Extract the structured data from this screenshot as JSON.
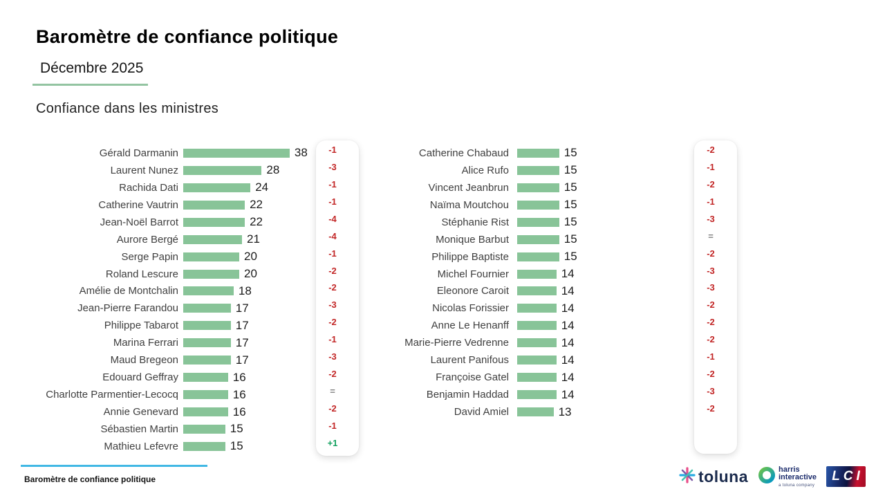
{
  "header": {
    "title": "Baromètre de confiance politique",
    "subtitle": "Décembre 2025",
    "section_title": "Confiance dans les ministres"
  },
  "chart_data": {
    "type": "bar",
    "title": "Confiance dans les ministres",
    "orientation": "horizontal",
    "xlim": [
      0,
      40
    ],
    "bar_color": "#88C498",
    "evolution_colors": {
      "negative": "#C22626",
      "positive": "#12A15F",
      "equal": "#7F7F7F"
    },
    "groups": [
      {
        "entries": [
          {
            "name": "Gérald Darmanin",
            "value": 38,
            "evolution": "-1"
          },
          {
            "name": "Laurent Nunez",
            "value": 28,
            "evolution": "-3"
          },
          {
            "name": "Rachida Dati",
            "value": 24,
            "evolution": "-1"
          },
          {
            "name": "Catherine Vautrin",
            "value": 22,
            "evolution": "-1"
          },
          {
            "name": "Jean-Noël Barrot",
            "value": 22,
            "evolution": "-4"
          },
          {
            "name": "Aurore Bergé",
            "value": 21,
            "evolution": "-4"
          },
          {
            "name": "Serge Papin",
            "value": 20,
            "evolution": "-1"
          },
          {
            "name": "Roland Lescure",
            "value": 20,
            "evolution": "-2"
          },
          {
            "name": "Amélie de Montchalin",
            "value": 18,
            "evolution": "-2"
          },
          {
            "name": "Jean-Pierre Farandou",
            "value": 17,
            "evolution": "-3"
          },
          {
            "name": "Philippe Tabarot",
            "value": 17,
            "evolution": "-2"
          },
          {
            "name": "Marina Ferrari",
            "value": 17,
            "evolution": "-1"
          },
          {
            "name": "Maud Bregeon",
            "value": 17,
            "evolution": "-3"
          },
          {
            "name": "Edouard Geffray",
            "value": 16,
            "evolution": "-2"
          },
          {
            "name": "Charlotte Parmentier-Lecocq",
            "value": 16,
            "evolution": "="
          },
          {
            "name": "Annie Genevard",
            "value": 16,
            "evolution": "-2"
          },
          {
            "name": "Sébastien Martin",
            "value": 15,
            "evolution": "-1"
          },
          {
            "name": "Mathieu Lefevre",
            "value": 15,
            "evolution": "+1"
          }
        ]
      },
      {
        "entries": [
          {
            "name": "Catherine Chabaud",
            "value": 15,
            "evolution": "-2"
          },
          {
            "name": "Alice Rufo",
            "value": 15,
            "evolution": "-1"
          },
          {
            "name": "Vincent Jeanbrun",
            "value": 15,
            "evolution": "-2"
          },
          {
            "name": "Naïma Moutchou",
            "value": 15,
            "evolution": "-1"
          },
          {
            "name": "Stéphanie Rist",
            "value": 15,
            "evolution": "-3"
          },
          {
            "name": "Monique Barbut",
            "value": 15,
            "evolution": "="
          },
          {
            "name": "Philippe Baptiste",
            "value": 15,
            "evolution": "-2"
          },
          {
            "name": "Michel Fournier",
            "value": 14,
            "evolution": "-3"
          },
          {
            "name": "Eleonore Caroit",
            "value": 14,
            "evolution": "-3"
          },
          {
            "name": "Nicolas Forissier",
            "value": 14,
            "evolution": "-2"
          },
          {
            "name": "Anne Le Henanff",
            "value": 14,
            "evolution": "-2"
          },
          {
            "name": "Marie-Pierre Vedrenne",
            "value": 14,
            "evolution": "-2"
          },
          {
            "name": "Laurent Panifous",
            "value": 14,
            "evolution": "-1"
          },
          {
            "name": "Françoise Gatel",
            "value": 14,
            "evolution": "-2"
          },
          {
            "name": "Benjamin Haddad",
            "value": 14,
            "evolution": "-3"
          },
          {
            "name": "David Amiel",
            "value": 13,
            "evolution": "-2"
          }
        ]
      }
    ]
  },
  "footer": {
    "label": "Baromètre de confiance politique",
    "line_color": "#41B8E4"
  },
  "logos": {
    "toluna": "toluna",
    "harris_line1": "harris",
    "harris_line2": "interactive",
    "harris_tagline": "a toluna company",
    "lci": "LCI"
  }
}
